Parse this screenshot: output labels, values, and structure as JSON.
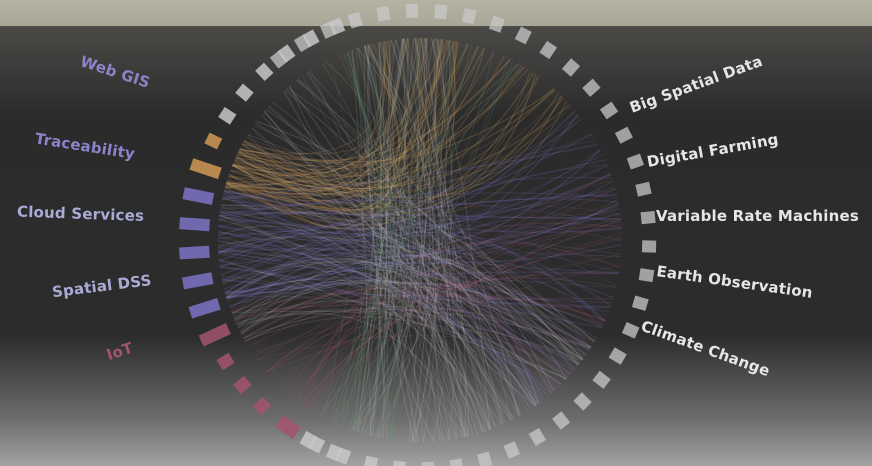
{
  "labels_left": [
    {
      "text": "Web GIS",
      "color": "#8b84c9"
    },
    {
      "text": "Traceability",
      "color": "#8b84c9"
    },
    {
      "text": "Cloud Services",
      "color": "#a9abd6"
    },
    {
      "text": "Spatial DSS",
      "color": "#a9abd6"
    },
    {
      "text": "IoT",
      "color": "#a2546f"
    }
  ],
  "labels_right": [
    {
      "text": "Big Spatial Data",
      "color": "#e6e6e6"
    },
    {
      "text": "Digital Farming",
      "color": "#e6e6e6"
    },
    {
      "text": "Variable Rate Machines",
      "color": "#e6e6e6"
    },
    {
      "text": "Earth Observation",
      "color": "#e6e6e6"
    },
    {
      "text": "Climate Change",
      "color": "#e6e6e6"
    }
  ],
  "colors": {
    "top_band": "#b9b6a5",
    "background_dark": "#2a2a2a",
    "background_light": "#8a8a8a",
    "orange": "#d09a55",
    "purple": "#7c74c4",
    "pink": "#a2546f",
    "green": "#6f9c7a",
    "gray": "#c8c8c8"
  }
}
